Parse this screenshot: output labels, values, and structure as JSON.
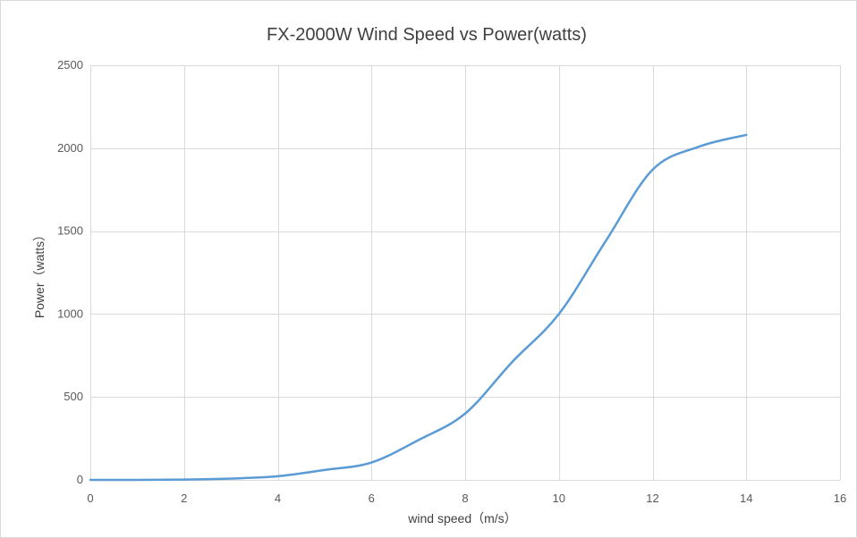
{
  "chart_data": {
    "type": "line",
    "title": "FX-2000W Wind Speed vs Power(watts)",
    "xlabel": "wind speed（m/s）",
    "ylabel": "Power（watts）",
    "xlim": [
      0,
      16
    ],
    "ylim": [
      0,
      2500
    ],
    "x_ticks": [
      0,
      2,
      4,
      6,
      8,
      10,
      12,
      14,
      16
    ],
    "y_ticks": [
      0,
      500,
      1000,
      1500,
      2000,
      2500
    ],
    "grid": true,
    "legend": "none",
    "line_color": "#5b9bd5",
    "series": [
      {
        "x": [
          0,
          1,
          2,
          3,
          4,
          5,
          6,
          7,
          8,
          9,
          10,
          11,
          12,
          13,
          14
        ],
        "values": [
          0,
          0,
          2,
          8,
          22,
          60,
          105,
          240,
          400,
          710,
          1000,
          1440,
          1870,
          2010,
          2080
        ]
      }
    ]
  }
}
